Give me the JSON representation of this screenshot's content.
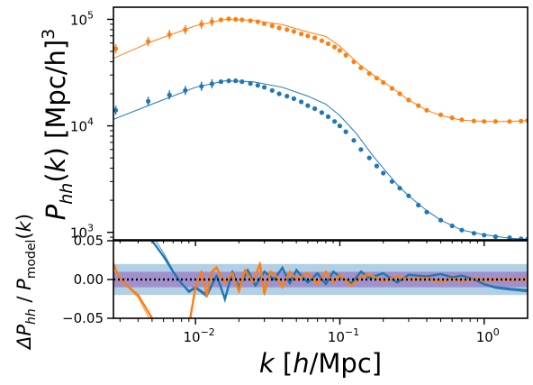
{
  "chart_data": [
    {
      "type": "line",
      "panel": "top",
      "ylabel": "P_hh(k) [Mpc/h]^3",
      "xscale": "log",
      "yscale": "log",
      "xlim": [
        0.0027,
        2.0
      ],
      "ylim": [
        850,
        130000
      ],
      "xtick_labels": [
        "10",
        "10",
        "10"
      ],
      "xtick_exponents": [
        "−2",
        "−1",
        "0"
      ],
      "ytick_values": [
        1000,
        10000,
        100000
      ],
      "ytick_labels": [
        "10",
        "10",
        "10"
      ],
      "ytick_exponents": [
        "3",
        "4",
        "5"
      ],
      "series": [
        {
          "color": "#ff7f0e",
          "model_x": [
            0.0027,
            0.005,
            0.01,
            0.016,
            0.025,
            0.04,
            0.06,
            0.08,
            0.1,
            0.13,
            0.17,
            0.2,
            0.25,
            0.3,
            0.4,
            0.5,
            0.7,
            1.0,
            1.5,
            2.0
          ],
          "model_y": [
            43000,
            62000,
            87000,
            100000,
            98000,
            89000,
            76000,
            69000,
            56000,
            40000,
            30000,
            26000,
            21000,
            17500,
            14000,
            12500,
            11300,
            11000,
            11000,
            11200
          ],
          "points_x": [
            0.0028,
            0.0047,
            0.0066,
            0.0085,
            0.011,
            0.013,
            0.015,
            0.017,
            0.019,
            0.021,
            0.024,
            0.027,
            0.03,
            0.034,
            0.038,
            0.043,
            0.048,
            0.054,
            0.06,
            0.067,
            0.075,
            0.083,
            0.092,
            0.1,
            0.11,
            0.125,
            0.14,
            0.16,
            0.18,
            0.2,
            0.23,
            0.26,
            0.3,
            0.35,
            0.4,
            0.5,
            0.6,
            0.7,
            0.85,
            1.0,
            1.2,
            1.5,
            1.8,
            2.0
          ],
          "points_y": [
            53000,
            62000,
            72000,
            80000,
            90000,
            95000,
            99000,
            101000,
            100000,
            99000,
            97000,
            95000,
            91000,
            87000,
            83000,
            80000,
            77000,
            73000,
            70000,
            67000,
            63000,
            59000,
            55000,
            51000,
            46000,
            40000,
            35000,
            31000,
            28000,
            25500,
            22500,
            20000,
            17500,
            15500,
            14000,
            12700,
            11900,
            11400,
            11100,
            11000,
            11000,
            11000,
            11050,
            11200
          ]
        },
        {
          "color": "#1f77b4",
          "model_x": [
            0.0027,
            0.005,
            0.01,
            0.016,
            0.025,
            0.04,
            0.06,
            0.08,
            0.1,
            0.13,
            0.17,
            0.2,
            0.25,
            0.3,
            0.4,
            0.5,
            0.7,
            1.0,
            1.5,
            2.0
          ],
          "model_y": [
            11500,
            16000,
            23000,
            26500,
            26000,
            23000,
            19000,
            16000,
            12500,
            8500,
            5200,
            4000,
            2800,
            2200,
            1600,
            1300,
            1050,
            950,
            880,
            860
          ],
          "points_x": [
            0.0028,
            0.0047,
            0.0066,
            0.0085,
            0.011,
            0.013,
            0.015,
            0.017,
            0.019,
            0.021,
            0.024,
            0.027,
            0.03,
            0.034,
            0.038,
            0.043,
            0.048,
            0.054,
            0.06,
            0.067,
            0.075,
            0.083,
            0.092,
            0.1,
            0.11,
            0.125,
            0.14,
            0.16,
            0.18,
            0.2,
            0.23,
            0.26,
            0.3,
            0.35,
            0.4,
            0.5,
            0.6,
            0.7,
            0.85,
            1.0,
            1.2,
            1.5,
            1.8,
            2.0
          ],
          "points_y": [
            14000,
            17000,
            19500,
            21500,
            23500,
            24800,
            26000,
            26500,
            26500,
            26000,
            25000,
            24000,
            23000,
            21500,
            20000,
            19000,
            18000,
            16800,
            15500,
            14500,
            13300,
            12200,
            11000,
            10000,
            8800,
            7300,
            6000,
            5000,
            4200,
            3600,
            3000,
            2600,
            2200,
            1800,
            1550,
            1300,
            1150,
            1050,
            980,
            940,
            910,
            890,
            870,
            860
          ]
        }
      ]
    },
    {
      "type": "line",
      "panel": "bottom",
      "xlabel": "k [h/Mpc]",
      "ylabel": "ΔP_hh / P_model (k)",
      "xscale": "log",
      "xlim": [
        0.0027,
        2.0
      ],
      "ylim": [
        -0.05,
        0.05
      ],
      "ytick_values": [
        -0.05,
        0.0,
        0.05
      ],
      "ytick_labels": [
        "−0.05",
        "0.00",
        "0.05"
      ],
      "xtick_labels": [
        "10",
        "10",
        "10"
      ],
      "xtick_exponents": [
        "−2",
        "−1",
        "0"
      ],
      "bands": [
        {
          "y": [
            -0.02,
            0.02
          ],
          "color": "#1f77b4",
          "opacity": 0.35
        },
        {
          "y": [
            -0.01,
            0.01
          ],
          "color": "#9467bd",
          "opacity": 0.6
        }
      ],
      "reference_line": {
        "y": 0,
        "style": "dotted",
        "color": "#000000"
      },
      "series": [
        {
          "color": "#1f77b4",
          "x": [
            0.0027,
            0.004,
            0.005,
            0.006,
            0.007,
            0.008,
            0.009,
            0.01,
            0.012,
            0.014,
            0.016,
            0.018,
            0.02,
            0.023,
            0.026,
            0.03,
            0.035,
            0.04,
            0.045,
            0.05,
            0.06,
            0.07,
            0.08,
            0.09,
            0.1,
            0.12,
            0.14,
            0.16,
            0.2,
            0.25,
            0.3,
            0.4,
            0.5,
            0.6,
            0.7,
            0.8,
            0.9,
            1.0,
            1.2,
            1.5,
            2.0
          ],
          "y": [
            0.08,
            0.06,
            0.05,
            0.03,
            0.01,
            -0.005,
            -0.015,
            -0.01,
            -0.02,
            0.005,
            -0.025,
            0.01,
            -0.01,
            0.012,
            -0.008,
            0.01,
            0.0,
            0.015,
            -0.005,
            0.012,
            -0.004,
            0.008,
            -0.006,
            0.01,
            0.004,
            -0.005,
            0.01,
            0.002,
            0.008,
            -0.004,
            0.006,
            0.004,
            0.007,
            0.003,
            0.005,
            0.002,
            -0.002,
            -0.006,
            -0.01,
            -0.012,
            -0.014
          ]
        },
        {
          "color": "#ff7f0e",
          "x": [
            0.0027,
            0.003,
            0.004,
            0.005,
            0.006,
            0.007,
            0.008,
            0.009,
            0.01,
            0.011,
            0.012,
            0.013,
            0.014,
            0.016,
            0.018,
            0.02,
            0.022,
            0.025,
            0.028,
            0.03,
            0.033,
            0.036,
            0.04,
            0.045,
            0.05,
            0.06,
            0.07,
            0.08,
            0.09,
            0.1,
            0.12,
            0.14,
            0.16,
            0.2,
            0.25,
            0.3,
            0.4,
            0.5,
            0.6,
            0.7,
            0.8,
            0.9,
            1.0,
            1.2,
            1.5,
            2.0
          ],
          "y": [
            0.02,
            0.0,
            -0.02,
            -0.05,
            -0.07,
            -0.085,
            -0.09,
            -0.06,
            -0.01,
            0.01,
            -0.02,
            0.01,
            0.015,
            -0.005,
            0.008,
            -0.015,
            0.012,
            -0.003,
            0.02,
            -0.018,
            0.01,
            0.005,
            -0.01,
            0.01,
            0.0,
            0.008,
            -0.006,
            0.01,
            -0.004,
            0.006,
            -0.008,
            0.004,
            0.006,
            -0.002,
            0.004,
            0.0,
            0.002,
            -0.003,
            0.001,
            -0.002,
            0.0,
            0.001,
            -0.001,
            0.0,
            0.0,
            0.0
          ]
        }
      ]
    }
  ]
}
